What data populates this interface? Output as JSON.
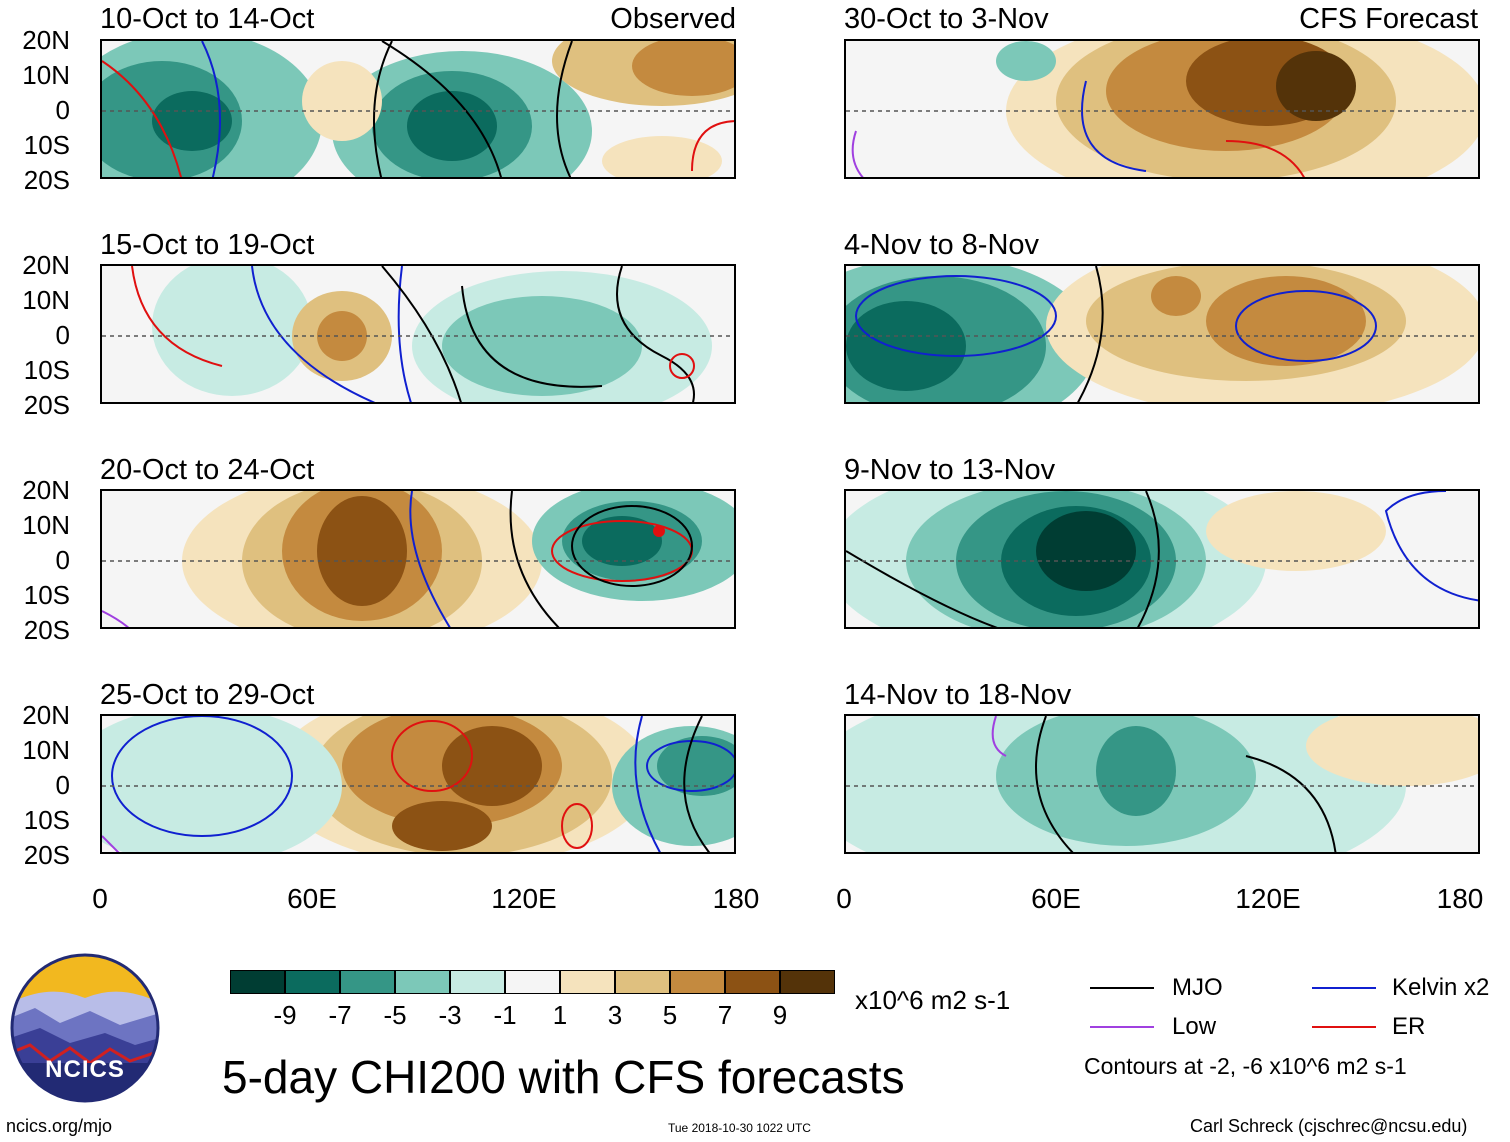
{
  "panels": [
    {
      "title": "10-Oct to 14-Oct",
      "tag": "Observed"
    },
    {
      "title": "30-Oct to 3-Nov",
      "tag": "CFS Forecast"
    },
    {
      "title": "15-Oct to 19-Oct",
      "tag": ""
    },
    {
      "title": "4-Nov to 8-Nov",
      "tag": ""
    },
    {
      "title": "20-Oct to 24-Oct",
      "tag": ""
    },
    {
      "title": "9-Nov to 13-Nov",
      "tag": ""
    },
    {
      "title": "25-Oct to 29-Oct",
      "tag": ""
    },
    {
      "title": "14-Nov to 18-Nov",
      "tag": ""
    }
  ],
  "y_ticks": [
    "20N",
    "10N",
    "0",
    "10S",
    "20S"
  ],
  "x_ticks": [
    "0",
    "60E",
    "120E",
    "180"
  ],
  "colorbar": {
    "colors": [
      "#003d33",
      "#0b6b5e",
      "#359686",
      "#7cc8b8",
      "#c7ebe3",
      "#f5f5f5",
      "#f5e3bd",
      "#dfc07f",
      "#c48a3f",
      "#8c5214",
      "#543309"
    ],
    "labels": [
      "-9",
      "-7",
      "-5",
      "-3",
      "-1",
      "1",
      "3",
      "5",
      "7",
      "9"
    ],
    "units": "x10^6 m2 s-1"
  },
  "legend": {
    "mjo": {
      "label": "MJO",
      "color": "#000000"
    },
    "kelvin": {
      "label": "Kelvin x2",
      "color": "#1020d0"
    },
    "low": {
      "label": "Low",
      "color": "#a040e0"
    },
    "er": {
      "label": "ER",
      "color": "#e01010"
    },
    "contours_note": "Contours at -2, -6 x10^6 m2 s-1"
  },
  "main_title": "5-day CHI200 with CFS forecasts",
  "logo_text": "NCICS",
  "website": "ncics.org/mjo",
  "timestamp": "Tue 2018-10-30 1022 UTC",
  "credit": "Carl Schreck (cjschrec@ncsu.edu)"
}
